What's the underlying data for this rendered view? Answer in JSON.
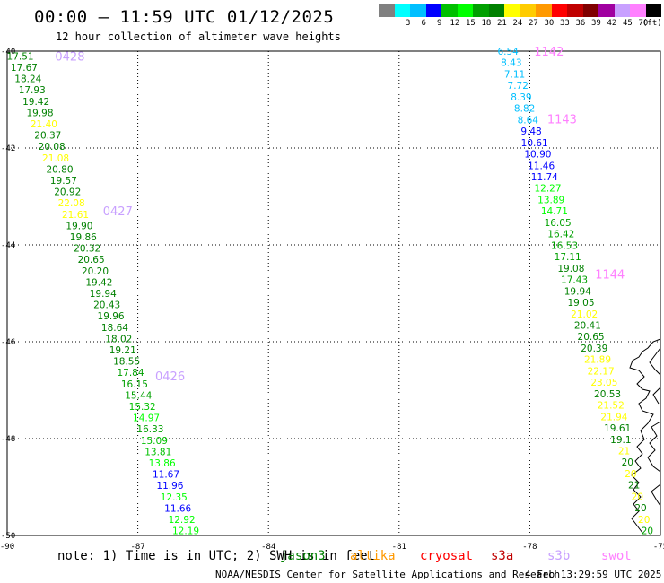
{
  "header": {
    "title": "00:00 – 11:59 UTC 01/12/2025",
    "subtitle": "12 hour collection of altimeter wave heights"
  },
  "colorbar": {
    "unit": "(ft)",
    "bins": [
      {
        "color": "#808080",
        "label": ""
      },
      {
        "color": "#00ffff",
        "label": "3"
      },
      {
        "color": "#00bfff",
        "label": "6"
      },
      {
        "color": "#0000ff",
        "label": "9"
      },
      {
        "color": "#00c000",
        "label": "12"
      },
      {
        "color": "#00ff00",
        "label": "15"
      },
      {
        "color": "#00a000",
        "label": "18"
      },
      {
        "color": "#008000",
        "label": "21"
      },
      {
        "color": "#ffff00",
        "label": "24"
      },
      {
        "color": "#ffcc00",
        "label": "27"
      },
      {
        "color": "#ff9900",
        "label": "30"
      },
      {
        "color": "#ff0000",
        "label": "33"
      },
      {
        "color": "#c00000",
        "label": "36"
      },
      {
        "color": "#800000",
        "label": "39"
      },
      {
        "color": "#a000a0",
        "label": "42"
      },
      {
        "color": "#c8a0ff",
        "label": "45"
      },
      {
        "color": "#ff80ff",
        "label": "70"
      },
      {
        "color": "#000000",
        "label": ""
      }
    ]
  },
  "map": {
    "lon_ticks": [
      "-90",
      "-87",
      "-84",
      "-81",
      "-78",
      "-75"
    ],
    "lat_ticks": [
      "-40",
      "-42",
      "-44",
      "-46",
      "-48",
      "-50"
    ],
    "time_labels": [
      {
        "text": "0428",
        "lon": -88.9,
        "lat": -40.1
      },
      {
        "text": "0427",
        "lon": -87.8,
        "lat": -43.3
      },
      {
        "text": "0426",
        "lon": -86.6,
        "lat": -46.7
      },
      {
        "text": "1142",
        "lon": -77.9,
        "lat": -40.0
      },
      {
        "text": "1143",
        "lon": -77.6,
        "lat": -41.4
      },
      {
        "text": "1144",
        "lon": -76.5,
        "lat": -44.6
      }
    ],
    "tracks": [
      {
        "lon_start": -89.7,
        "lat_start": -40.1,
        "lon_end": -85.9,
        "lat_end": -49.9,
        "values": [
          "17.51",
          "17.67",
          "18.24",
          "17.93",
          "19.42",
          "19.98",
          "21.40",
          "20.37",
          "20.08",
          "21.08",
          "20.80",
          "19.57",
          "20.92",
          "22.08",
          "21.61",
          "19.90",
          "19.86",
          "20.32",
          "20.65",
          "20.20",
          "19.42",
          "19.94",
          "20.43",
          "19.96",
          "18.64",
          "18.02",
          "19.21",
          "18.55",
          "17.84",
          "16.15",
          "15.44",
          "15.32",
          "14.97",
          "16.33",
          "15.09",
          "13.81",
          "13.86",
          "11.67",
          "11.96",
          "12.35",
          "11.66",
          "12.92",
          "12.19"
        ],
        "colors": [
          "#008000",
          "#008000",
          "#008000",
          "#008000",
          "#008000",
          "#008000",
          "#ffff00",
          "#008000",
          "#008000",
          "#ffff00",
          "#008000",
          "#008000",
          "#008000",
          "#ffff00",
          "#ffff00",
          "#008000",
          "#008000",
          "#008000",
          "#008000",
          "#008000",
          "#008000",
          "#008000",
          "#008000",
          "#008000",
          "#008000",
          "#008000",
          "#008000",
          "#008000",
          "#00a000",
          "#00a000",
          "#00a000",
          "#00c000",
          "#00ff00",
          "#00a000",
          "#00c000",
          "#00c000",
          "#00ff00",
          "#0000ff",
          "#0000ff",
          "#00ff00",
          "#0000ff",
          "#00ff00",
          "#00ff00"
        ]
      },
      {
        "lon_start": -78.5,
        "lat_start": -40.0,
        "lon_end": -75.3,
        "lat_end": -49.9,
        "values": [
          "6.54",
          "8.43",
          "7.11",
          "7.72",
          "8.39",
          "8.82",
          "8.64",
          "9.48",
          "10.61",
          "10.90",
          "11.46",
          "11.74",
          "12.27",
          "13.89",
          "14.71",
          "16.05",
          "16.42",
          "16.53",
          "17.11",
          "19.08",
          "17.43",
          "19.94",
          "19.05",
          "21.02",
          "20.41",
          "20.65",
          "20.39",
          "21.89",
          "22.17",
          "23.05",
          "20.53",
          "21.52",
          "21.94",
          "19.61",
          "19.1",
          "21",
          "20",
          "20",
          "21",
          "20",
          "20",
          "20",
          "20"
        ],
        "colors": [
          "#00bfff",
          "#00bfff",
          "#00bfff",
          "#00bfff",
          "#00bfff",
          "#00bfff",
          "#00bfff",
          "#0000ff",
          "#0000ff",
          "#0000ff",
          "#0000ff",
          "#0000ff",
          "#00ff00",
          "#00ff00",
          "#00ff00",
          "#00a000",
          "#00a000",
          "#00a000",
          "#00a000",
          "#008000",
          "#00a000",
          "#008000",
          "#008000",
          "#ffff00",
          "#008000",
          "#008000",
          "#008000",
          "#ffff00",
          "#ffff00",
          "#ffff00",
          "#008000",
          "#ffff00",
          "#ffff00",
          "#008000",
          "#008000",
          "#ffff00",
          "#008000",
          "#ffff00",
          "#008000",
          "#ffff00",
          "#008000",
          "#ffff00",
          "#00a000"
        ]
      }
    ]
  },
  "legend": {
    "note": "note:  1) Time is in UTC;  2) SWH is in feet",
    "missions": [
      {
        "name": "jason3",
        "color": "#008000"
      },
      {
        "name": "altika",
        "color": "#ff9900"
      },
      {
        "name": "cryosat",
        "color": "#ff0000"
      },
      {
        "name": "s3a",
        "color": "#c00000"
      },
      {
        "name": "s3b",
        "color": "#c8a0ff"
      },
      {
        "name": "swot",
        "color": "#ff80ff"
      }
    ]
  },
  "footer": {
    "credit": "NOAA/NESDIS Center for Satellite Applications and Research",
    "timestamp": "4 Feb 13:29:59 UTC 2025"
  }
}
